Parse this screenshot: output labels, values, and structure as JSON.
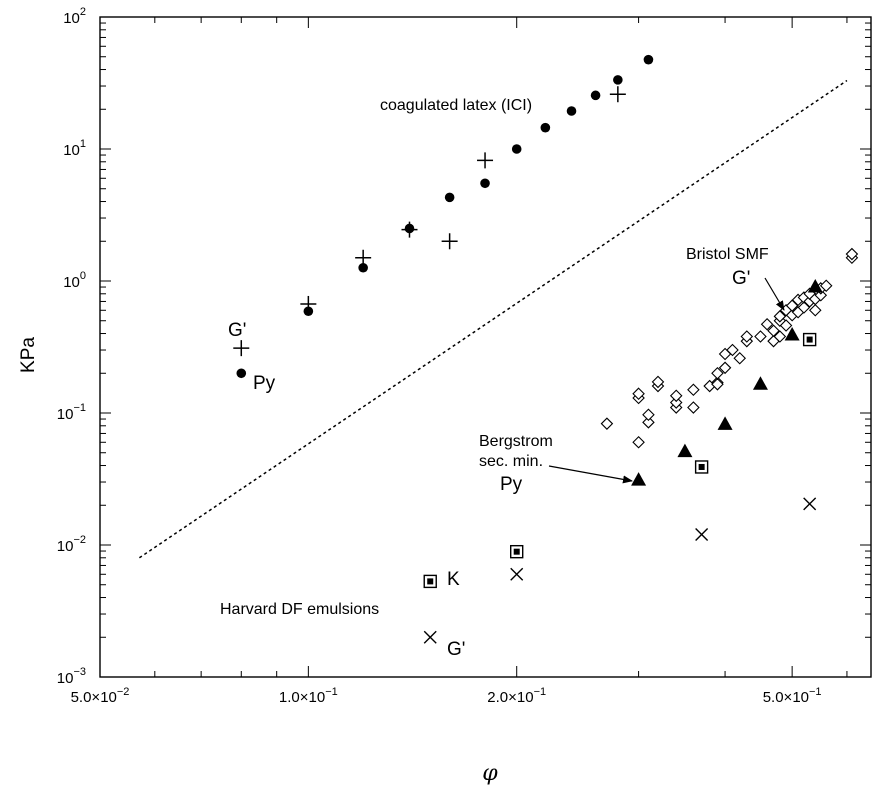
{
  "chart_data": {
    "type": "scatter",
    "xscale": "log",
    "yscale": "log",
    "xlim": [
      0.05,
      0.65
    ],
    "ylim": [
      0.001,
      100
    ],
    "xlabel": "φ",
    "ylabel": "KPa",
    "xticks": [
      {
        "value": 0.05,
        "mant": "5.0×10",
        "exp": "−2"
      },
      {
        "value": 0.1,
        "mant": "1.0×10",
        "exp": "−1"
      },
      {
        "value": 0.2,
        "mant": "2.0×10",
        "exp": "−1"
      },
      {
        "value": 0.5,
        "mant": "5.0×10",
        "exp": "−1"
      }
    ],
    "yticks": [
      {
        "value": 0.001,
        "base": "10",
        "exp": "−3"
      },
      {
        "value": 0.01,
        "base": "10",
        "exp": "−2"
      },
      {
        "value": 0.1,
        "base": "10",
        "exp": "−1"
      },
      {
        "value": 1,
        "base": "10",
        "exp": "0"
      },
      {
        "value": 10,
        "base": "10",
        "exp": "1"
      },
      {
        "value": 100,
        "base": "10",
        "exp": "2"
      }
    ],
    "grid": false,
    "series": [
      {
        "marker": "plus",
        "points": [
          [
            0.08,
            0.31
          ],
          [
            0.1,
            0.67
          ],
          [
            0.12,
            1.5
          ],
          [
            0.14,
            2.45
          ],
          [
            0.16,
            2.0
          ],
          [
            0.18,
            8.2
          ],
          [
            0.28,
            26
          ]
        ]
      },
      {
        "marker": "dot",
        "points": [
          [
            0.08,
            0.2
          ],
          [
            0.1,
            0.59
          ],
          [
            0.12,
            1.26
          ],
          [
            0.14,
            2.5
          ],
          [
            0.16,
            4.3
          ],
          [
            0.18,
            5.5
          ],
          [
            0.2,
            10
          ],
          [
            0.22,
            14.5
          ],
          [
            0.24,
            19.4
          ],
          [
            0.26,
            25.5
          ],
          [
            0.28,
            33.4
          ],
          [
            0.31,
            47.5
          ]
        ]
      },
      {
        "marker": "diamond",
        "points": [
          [
            0.27,
            0.083
          ],
          [
            0.3,
            0.06
          ],
          [
            0.3,
            0.13
          ],
          [
            0.31,
            0.085
          ],
          [
            0.31,
            0.097
          ],
          [
            0.32,
            0.16
          ],
          [
            0.32,
            0.172
          ],
          [
            0.3,
            0.14
          ],
          [
            0.34,
            0.11
          ],
          [
            0.34,
            0.12
          ],
          [
            0.34,
            0.135
          ],
          [
            0.36,
            0.11
          ],
          [
            0.36,
            0.15
          ],
          [
            0.38,
            0.16
          ],
          [
            0.39,
            0.17
          ],
          [
            0.39,
            0.165
          ],
          [
            0.39,
            0.2
          ],
          [
            0.4,
            0.22
          ],
          [
            0.4,
            0.28
          ],
          [
            0.41,
            0.3
          ],
          [
            0.42,
            0.26
          ],
          [
            0.43,
            0.35
          ],
          [
            0.43,
            0.38
          ],
          [
            0.45,
            0.38
          ],
          [
            0.46,
            0.47
          ],
          [
            0.47,
            0.35
          ],
          [
            0.47,
            0.42
          ],
          [
            0.48,
            0.38
          ],
          [
            0.48,
            0.5
          ],
          [
            0.48,
            0.54
          ],
          [
            0.49,
            0.46
          ],
          [
            0.49,
            0.6
          ],
          [
            0.5,
            0.55
          ],
          [
            0.5,
            0.65
          ],
          [
            0.51,
            0.58
          ],
          [
            0.51,
            0.72
          ],
          [
            0.52,
            0.63
          ],
          [
            0.52,
            0.75
          ],
          [
            0.53,
            0.7
          ],
          [
            0.53,
            0.8
          ],
          [
            0.54,
            0.73
          ],
          [
            0.54,
            0.6
          ],
          [
            0.55,
            0.78
          ],
          [
            0.55,
            0.88
          ],
          [
            0.56,
            0.92
          ],
          [
            0.61,
            1.5
          ],
          [
            0.61,
            1.6
          ]
        ]
      },
      {
        "marker": "triangle",
        "points": [
          [
            0.3,
            0.031
          ],
          [
            0.35,
            0.051
          ],
          [
            0.4,
            0.082
          ],
          [
            0.45,
            0.165
          ],
          [
            0.5,
            0.39
          ],
          [
            0.54,
            0.9
          ]
        ]
      },
      {
        "marker": "boxed-square",
        "points": [
          [
            0.15,
            0.0053
          ],
          [
            0.2,
            0.0089
          ],
          [
            0.37,
            0.039
          ],
          [
            0.53,
            0.36
          ]
        ]
      },
      {
        "marker": "cross",
        "points": [
          [
            0.15,
            0.002
          ],
          [
            0.2,
            0.006
          ],
          [
            0.37,
            0.012
          ],
          [
            0.53,
            0.0205
          ]
        ]
      }
    ],
    "reference_line": {
      "style": "dotted",
      "points": [
        [
          0.057,
          0.008
        ],
        [
          0.6,
          33
        ]
      ]
    },
    "annotations": {
      "coagulated": "coagulated latex (ICI)",
      "g_prime": "G'",
      "py": "Py",
      "bristol": "Bristol SMF",
      "bergstrom_1": "Bergstrom",
      "bergstrom_2": "sec. min.",
      "k": "K",
      "harvard": "Harvard DF emulsions"
    }
  }
}
